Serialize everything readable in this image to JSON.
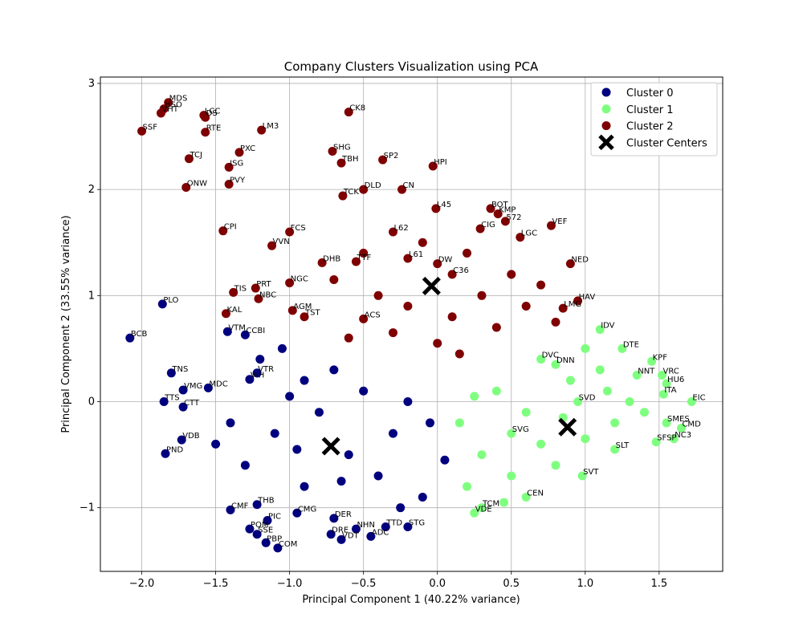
{
  "chart_data": {
    "type": "scatter",
    "title": "Company Clusters Visualization using PCA",
    "xlabel": "Principal Component 1 (40.22% variance)",
    "ylabel": "Principal Component 2 (33.55% variance)",
    "xlim": [
      -2.28,
      1.93
    ],
    "ylim": [
      -1.6,
      3.06
    ],
    "xticks": [
      -2.0,
      -1.5,
      -1.0,
      -0.5,
      0.0,
      0.5,
      1.0,
      1.5
    ],
    "xtick_labels": [
      "−2.0",
      "−1.5",
      "−1.0",
      "−0.5",
      "0.0",
      "0.5",
      "1.0",
      "1.5"
    ],
    "yticks": [
      -1,
      0,
      1,
      2,
      3
    ],
    "ytick_labels": [
      "−1",
      "0",
      "1",
      "2",
      "3"
    ],
    "grid": true,
    "legend_position": "top-right",
    "series": [
      {
        "name": "Cluster 0",
        "color": "#00007f",
        "points": [
          {
            "x": -2.08,
            "y": 0.6,
            "label": "BCB"
          },
          {
            "x": -1.86,
            "y": 0.92,
            "label": "PLO"
          },
          {
            "x": -1.8,
            "y": 0.27,
            "label": "TNS"
          },
          {
            "x": -1.72,
            "y": 0.11,
            "label": "VMG"
          },
          {
            "x": -1.85,
            "y": 0.0,
            "label": "TTS"
          },
          {
            "x": -1.55,
            "y": 0.13,
            "label": "MDC"
          },
          {
            "x": -1.72,
            "y": -0.05,
            "label": "CTT"
          },
          {
            "x": -1.73,
            "y": -0.36,
            "label": "VDB"
          },
          {
            "x": -1.84,
            "y": -0.49,
            "label": "PND"
          },
          {
            "x": -1.42,
            "y": 0.66,
            "label": "VTM"
          },
          {
            "x": -1.3,
            "y": 0.63,
            "label": "CCBI"
          },
          {
            "x": -1.27,
            "y": 0.21,
            "label": "VIH"
          },
          {
            "x": -1.22,
            "y": 0.27,
            "label": "VTR"
          },
          {
            "x": -1.4,
            "y": -1.02,
            "label": "CMF"
          },
          {
            "x": -1.22,
            "y": -0.97,
            "label": "THB"
          },
          {
            "x": -1.15,
            "y": -1.12,
            "label": "PIC"
          },
          {
            "x": -1.27,
            "y": -1.2,
            "label": "POM"
          },
          {
            "x": -1.22,
            "y": -1.25,
            "label": "SSE"
          },
          {
            "x": -1.16,
            "y": -1.33,
            "label": "PBP"
          },
          {
            "x": -1.08,
            "y": -1.38,
            "label": "COM"
          },
          {
            "x": -0.95,
            "y": -1.05,
            "label": "CMG"
          },
          {
            "x": -0.7,
            "y": -1.1,
            "label": "DER"
          },
          {
            "x": -0.65,
            "y": -1.3,
            "label": "VDT"
          },
          {
            "x": -0.45,
            "y": -1.27,
            "label": "ADC"
          },
          {
            "x": -0.35,
            "y": -1.18,
            "label": "TTD"
          },
          {
            "x": -0.2,
            "y": -1.18,
            "label": "STG"
          },
          {
            "x": -0.72,
            "y": -1.25,
            "label": "DRE"
          },
          {
            "x": -0.55,
            "y": -1.2,
            "label": "NHN"
          },
          {
            "x": -1.0,
            "y": 0.05,
            "label": ""
          },
          {
            "x": -0.9,
            "y": 0.2,
            "label": ""
          },
          {
            "x": -0.8,
            "y": -0.1,
            "label": ""
          },
          {
            "x": -1.1,
            "y": -0.3,
            "label": ""
          },
          {
            "x": -0.6,
            "y": -0.5,
            "label": ""
          },
          {
            "x": -0.4,
            "y": -0.7,
            "label": ""
          },
          {
            "x": -0.3,
            "y": -0.3,
            "label": ""
          },
          {
            "x": -0.2,
            "y": 0.0,
            "label": ""
          },
          {
            "x": -0.5,
            "y": 0.1,
            "label": ""
          },
          {
            "x": -0.7,
            "y": 0.3,
            "label": ""
          },
          {
            "x": -1.3,
            "y": -0.6,
            "label": ""
          },
          {
            "x": -1.5,
            "y": -0.4,
            "label": ""
          },
          {
            "x": -1.4,
            "y": -0.2,
            "label": ""
          },
          {
            "x": -0.9,
            "y": -0.8,
            "label": ""
          },
          {
            "x": -0.1,
            "y": -0.9,
            "label": ""
          },
          {
            "x": 0.05,
            "y": -0.55,
            "label": ""
          },
          {
            "x": -0.05,
            "y": -0.2,
            "label": ""
          },
          {
            "x": -1.2,
            "y": 0.4,
            "label": ""
          },
          {
            "x": -1.05,
            "y": 0.5,
            "label": ""
          },
          {
            "x": -0.95,
            "y": -0.45,
            "label": ""
          },
          {
            "x": -0.65,
            "y": -0.75,
            "label": ""
          },
          {
            "x": -0.25,
            "y": -1.0,
            "label": ""
          }
        ]
      },
      {
        "name": "Cluster 1",
        "color": "#7fff7f",
        "points": [
          {
            "x": 1.72,
            "y": 0.0,
            "label": "EIC"
          },
          {
            "x": 1.52,
            "y": 0.25,
            "label": "VRC"
          },
          {
            "x": 1.55,
            "y": 0.17,
            "label": "HU6"
          },
          {
            "x": 1.53,
            "y": 0.07,
            "label": "ITA"
          },
          {
            "x": 1.45,
            "y": 0.38,
            "label": "KPF"
          },
          {
            "x": 1.35,
            "y": 0.25,
            "label": "NNT"
          },
          {
            "x": 1.1,
            "y": 0.68,
            "label": "IDV"
          },
          {
            "x": 1.25,
            "y": 0.5,
            "label": "DTE"
          },
          {
            "x": 1.55,
            "y": -0.2,
            "label": "SMES"
          },
          {
            "x": 1.65,
            "y": -0.25,
            "label": "CMD"
          },
          {
            "x": 1.6,
            "y": -0.35,
            "label": "NC3"
          },
          {
            "x": 1.48,
            "y": -0.38,
            "label": "SFSP"
          },
          {
            "x": 1.2,
            "y": -0.45,
            "label": "SLT"
          },
          {
            "x": 0.98,
            "y": -0.7,
            "label": "SVT"
          },
          {
            "x": 0.6,
            "y": -0.9,
            "label": "CEN"
          },
          {
            "x": 0.3,
            "y": -1.0,
            "label": "TCM"
          },
          {
            "x": 0.25,
            "y": -1.05,
            "label": "VDE"
          },
          {
            "x": 0.5,
            "y": -0.3,
            "label": "SVG"
          },
          {
            "x": 0.95,
            "y": 0.0,
            "label": "SVD"
          },
          {
            "x": 0.7,
            "y": 0.4,
            "label": "DVC"
          },
          {
            "x": 0.8,
            "y": 0.35,
            "label": "DNN"
          },
          {
            "x": 1.3,
            "y": 0.0,
            "label": ""
          },
          {
            "x": 1.2,
            "y": -0.2,
            "label": ""
          },
          {
            "x": 1.0,
            "y": -0.35,
            "label": ""
          },
          {
            "x": 0.8,
            "y": -0.6,
            "label": ""
          },
          {
            "x": 0.5,
            "y": -0.7,
            "label": ""
          },
          {
            "x": 0.3,
            "y": -0.5,
            "label": ""
          },
          {
            "x": 0.15,
            "y": -0.2,
            "label": ""
          },
          {
            "x": 0.4,
            "y": 0.1,
            "label": ""
          },
          {
            "x": 0.6,
            "y": -0.1,
            "label": ""
          },
          {
            "x": 0.9,
            "y": 0.2,
            "label": ""
          },
          {
            "x": 1.1,
            "y": 0.3,
            "label": ""
          },
          {
            "x": 1.4,
            "y": -0.1,
            "label": ""
          },
          {
            "x": 0.7,
            "y": -0.4,
            "label": ""
          },
          {
            "x": 0.2,
            "y": -0.8,
            "label": ""
          },
          {
            "x": 1.0,
            "y": 0.5,
            "label": ""
          },
          {
            "x": 0.45,
            "y": -0.95,
            "label": ""
          },
          {
            "x": 0.85,
            "y": -0.15,
            "label": ""
          },
          {
            "x": 1.15,
            "y": 0.1,
            "label": ""
          },
          {
            "x": 0.25,
            "y": 0.05,
            "label": ""
          }
        ]
      },
      {
        "name": "Cluster 2",
        "color": "#7f0000",
        "points": [
          {
            "x": -1.82,
            "y": 2.82,
            "label": "MDS"
          },
          {
            "x": -1.85,
            "y": 2.76,
            "label": "HSO"
          },
          {
            "x": -1.87,
            "y": 2.72,
            "label": "VHT"
          },
          {
            "x": -1.58,
            "y": 2.7,
            "label": "LCC"
          },
          {
            "x": -1.57,
            "y": 2.68,
            "label": "DS"
          },
          {
            "x": -2.0,
            "y": 2.55,
            "label": "SSF"
          },
          {
            "x": -1.57,
            "y": 2.54,
            "label": "RTE"
          },
          {
            "x": -1.19,
            "y": 2.56,
            "label": "LM3"
          },
          {
            "x": -0.6,
            "y": 2.73,
            "label": "CK8"
          },
          {
            "x": -1.68,
            "y": 2.29,
            "label": "TCJ"
          },
          {
            "x": -1.34,
            "y": 2.35,
            "label": "PXC"
          },
          {
            "x": -1.41,
            "y": 2.21,
            "label": "ISG"
          },
          {
            "x": -0.71,
            "y": 2.36,
            "label": "SHG"
          },
          {
            "x": -0.65,
            "y": 2.25,
            "label": "TBH"
          },
          {
            "x": -0.37,
            "y": 2.28,
            "label": "SP2"
          },
          {
            "x": -0.03,
            "y": 2.22,
            "label": "HPI"
          },
          {
            "x": -1.7,
            "y": 2.02,
            "label": "ONW"
          },
          {
            "x": -1.41,
            "y": 2.05,
            "label": "PVY"
          },
          {
            "x": -0.5,
            "y": 2.0,
            "label": "DLD"
          },
          {
            "x": -0.24,
            "y": 2.0,
            "label": "CN"
          },
          {
            "x": -0.64,
            "y": 1.94,
            "label": "TCK"
          },
          {
            "x": -1.45,
            "y": 1.61,
            "label": "CPI"
          },
          {
            "x": -1.12,
            "y": 1.47,
            "label": "VVN"
          },
          {
            "x": -1.0,
            "y": 1.6,
            "label": "FCS"
          },
          {
            "x": -0.01,
            "y": 1.82,
            "label": "L45"
          },
          {
            "x": 0.36,
            "y": 1.82,
            "label": "BOT"
          },
          {
            "x": 0.41,
            "y": 1.77,
            "label": "KMP"
          },
          {
            "x": 0.46,
            "y": 1.7,
            "label": "572"
          },
          {
            "x": 0.77,
            "y": 1.66,
            "label": "VEF"
          },
          {
            "x": 0.29,
            "y": 1.63,
            "label": "CIG"
          },
          {
            "x": 0.56,
            "y": 1.55,
            "label": "LGC"
          },
          {
            "x": 0.9,
            "y": 1.3,
            "label": "NED"
          },
          {
            "x": -1.38,
            "y": 1.03,
            "label": "TIS"
          },
          {
            "x": -1.23,
            "y": 1.07,
            "label": "PRT"
          },
          {
            "x": -1.0,
            "y": 1.12,
            "label": "NGC"
          },
          {
            "x": -1.21,
            "y": 0.97,
            "label": "NBC"
          },
          {
            "x": -1.43,
            "y": 0.83,
            "label": "KAL"
          },
          {
            "x": -0.98,
            "y": 0.86,
            "label": "AGM"
          },
          {
            "x": -0.78,
            "y": 1.31,
            "label": "DHB"
          },
          {
            "x": -0.55,
            "y": 1.32,
            "label": "TTF"
          },
          {
            "x": -0.9,
            "y": 0.8,
            "label": "TST"
          },
          {
            "x": -0.5,
            "y": 0.78,
            "label": "ACS"
          },
          {
            "x": 0.85,
            "y": 0.88,
            "label": "LMG"
          },
          {
            "x": 0.95,
            "y": 0.95,
            "label": "HAV"
          },
          {
            "x": 0.0,
            "y": 1.3,
            "label": "DW"
          },
          {
            "x": 0.1,
            "y": 1.2,
            "label": "C36"
          },
          {
            "x": -0.3,
            "y": 1.6,
            "label": "L62"
          },
          {
            "x": -0.2,
            "y": 1.35,
            "label": "L61"
          },
          {
            "x": -0.7,
            "y": 1.15,
            "label": ""
          },
          {
            "x": -0.4,
            "y": 1.0,
            "label": ""
          },
          {
            "x": -0.2,
            "y": 0.9,
            "label": ""
          },
          {
            "x": 0.1,
            "y": 0.8,
            "label": ""
          },
          {
            "x": 0.3,
            "y": 1.0,
            "label": ""
          },
          {
            "x": 0.5,
            "y": 1.2,
            "label": ""
          },
          {
            "x": 0.6,
            "y": 0.9,
            "label": ""
          },
          {
            "x": 0.7,
            "y": 1.1,
            "label": ""
          },
          {
            "x": 0.2,
            "y": 1.4,
            "label": ""
          },
          {
            "x": -0.1,
            "y": 1.5,
            "label": ""
          },
          {
            "x": -0.5,
            "y": 1.4,
            "label": ""
          },
          {
            "x": -0.6,
            "y": 0.6,
            "label": ""
          },
          {
            "x": -0.3,
            "y": 0.65,
            "label": ""
          },
          {
            "x": 0.0,
            "y": 0.55,
            "label": ""
          },
          {
            "x": 0.4,
            "y": 0.7,
            "label": ""
          },
          {
            "x": 0.8,
            "y": 0.75,
            "label": ""
          },
          {
            "x": 0.15,
            "y": 0.45,
            "label": ""
          }
        ]
      }
    ],
    "centers": {
      "name": "Cluster Centers",
      "points": [
        {
          "x": -0.72,
          "y": -0.42
        },
        {
          "x": 0.88,
          "y": -0.24
        },
        {
          "x": -0.04,
          "y": 1.09
        }
      ]
    }
  }
}
